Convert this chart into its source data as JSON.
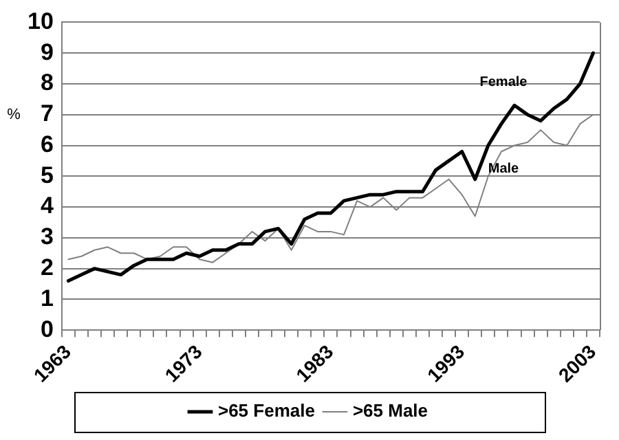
{
  "chart_data": {
    "type": "line",
    "ylabel": "%",
    "categories": [
      "1963",
      null,
      null,
      null,
      null,
      null,
      null,
      null,
      null,
      null,
      "1973",
      null,
      null,
      null,
      null,
      null,
      null,
      null,
      null,
      null,
      "1983",
      null,
      null,
      null,
      null,
      null,
      null,
      null,
      null,
      null,
      "1993",
      null,
      null,
      null,
      null,
      null,
      null,
      null,
      null,
      null,
      "2003"
    ],
    "series": [
      {
        "name": ">65 Female",
        "color": "#000000",
        "values": [
          1.6,
          1.8,
          2.0,
          1.9,
          1.8,
          2.1,
          2.3,
          2.3,
          2.3,
          2.5,
          2.4,
          2.6,
          2.6,
          2.8,
          2.8,
          3.2,
          3.3,
          2.8,
          3.6,
          3.8,
          3.8,
          4.2,
          4.3,
          4.4,
          4.4,
          4.5,
          4.5,
          4.5,
          5.2,
          5.5,
          5.8,
          4.9,
          6.0,
          6.7,
          7.3,
          7.0,
          6.8,
          7.2,
          7.5,
          8.0,
          9.0
        ]
      },
      {
        "name": ">65 Male",
        "color": "#808080",
        "values": [
          2.3,
          2.4,
          2.6,
          2.7,
          2.5,
          2.5,
          2.3,
          2.4,
          2.7,
          2.7,
          2.3,
          2.2,
          2.5,
          2.8,
          3.2,
          2.9,
          3.3,
          2.6,
          3.4,
          3.2,
          3.2,
          3.1,
          4.2,
          4.0,
          4.3,
          3.9,
          4.3,
          4.3,
          4.6,
          4.9,
          4.4,
          3.7,
          5.0,
          5.8,
          6.0,
          6.1,
          6.5,
          6.1,
          6.0,
          6.7,
          7.0
        ]
      }
    ],
    "annotations": [
      "Female",
      "Male"
    ],
    "ylim": [
      0,
      10
    ],
    "yticks": [
      0,
      1,
      2,
      3,
      4,
      5,
      6,
      7,
      8,
      9,
      10
    ],
    "grid": "y",
    "legend": "bottom",
    "marker": "none",
    "line_style": "solid"
  }
}
